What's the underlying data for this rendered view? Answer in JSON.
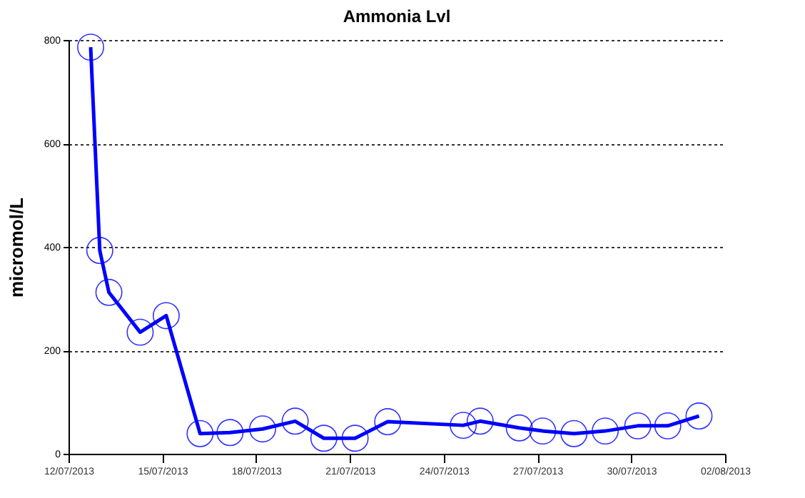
{
  "chart_data": {
    "type": "line",
    "title": "Ammonia Lvl",
    "ylabel": "micromol/L",
    "x": [
      "2013-07-12T17:00",
      "2013-07-13T00:00",
      "2013-07-13T07:00",
      "2013-07-14T07:00",
      "2013-07-15T03:00",
      "2013-07-16T05:00",
      "2013-07-17T04:00",
      "2013-07-18T05:00",
      "2013-07-19T06:00",
      "2013-07-20T04:00",
      "2013-07-21T04:00",
      "2013-07-22T05:00",
      "2013-07-24T15:00",
      "2013-07-25T04:00",
      "2013-07-26T10:00",
      "2013-07-27T04:00",
      "2013-07-28T04:00",
      "2013-07-29T04:00",
      "2013-07-30T05:00",
      "2013-07-31T04:00",
      "2013-08-01T04:00"
    ],
    "series": [
      {
        "color": "#0000ff",
        "values": [
          786,
          393,
          312,
          235,
          267,
          39,
          41,
          48,
          63,
          30,
          30,
          62,
          55,
          63,
          50,
          44,
          39,
          44,
          54,
          54,
          73
        ]
      }
    ],
    "xlim": [
      "2013-07-12",
      "2013-08-02"
    ],
    "xticks": [
      {
        "value": "2013-07-12",
        "label": "12/07/2013"
      },
      {
        "value": "2013-07-15",
        "label": "15/07/2013"
      },
      {
        "value": "2013-07-18",
        "label": "18/07/2013"
      },
      {
        "value": "2013-07-21",
        "label": "21/07/2013"
      },
      {
        "value": "2013-07-24",
        "label": "24/07/2013"
      },
      {
        "value": "2013-07-27",
        "label": "27/07/2013"
      },
      {
        "value": "2013-07-30",
        "label": "30/07/2013"
      },
      {
        "value": "2013-08-02",
        "label": "02/08/2013"
      }
    ],
    "ylim": [
      0,
      800
    ],
    "yticks": [
      0,
      200,
      400,
      600,
      800
    ],
    "grid": "y",
    "marker": "circle",
    "line_style": "solid"
  }
}
